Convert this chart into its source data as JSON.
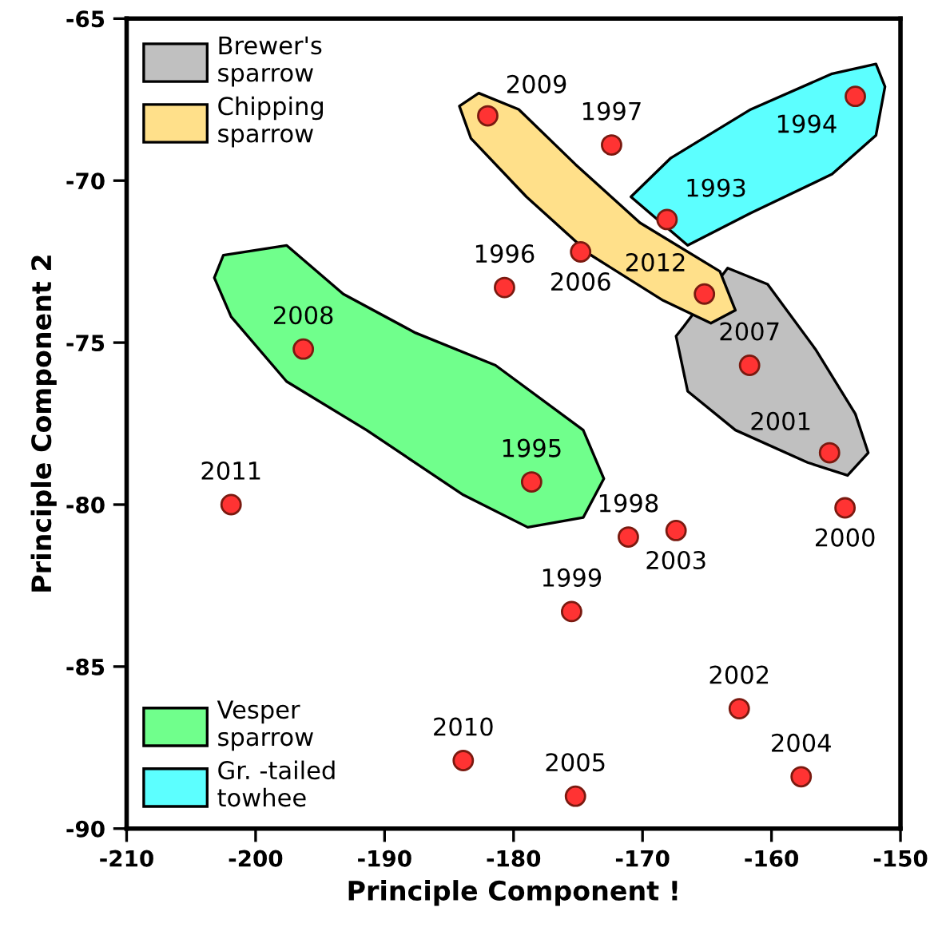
{
  "chart_data": {
    "type": "scatter",
    "xlabel": "Principle Component !",
    "ylabel": "Principle Component 2",
    "xlim": [
      -210,
      -150
    ],
    "xticks": [
      -210,
      -200,
      -190,
      -180,
      -170,
      -160,
      -150
    ],
    "ylim": [
      -90,
      -65
    ],
    "yticks": [
      -90,
      -85,
      -80,
      -75,
      -70,
      -65
    ],
    "grid": false,
    "legend": "top left",
    "series": [
      {
        "color": "#ff3333",
        "marker": "circle",
        "x": [
          -182.0,
          -172.4,
          -153.5,
          -168.1,
          -174.8,
          -180.7,
          -165.2,
          -196.3,
          -161.7,
          -155.5,
          -178.6,
          -201.9,
          -154.3,
          -171.1,
          -167.4,
          -175.5,
          -162.5,
          -183.9,
          -157.7,
          -175.2
        ],
        "values": [
          -68.0,
          -68.9,
          -67.4,
          -71.2,
          -72.2,
          -73.3,
          -73.5,
          -75.2,
          -75.7,
          -78.4,
          -79.3,
          -80.0,
          -80.1,
          -81.0,
          -80.8,
          -83.3,
          -86.3,
          -87.9,
          -88.4,
          -89.0
        ]
      },
      {
        "type": "area",
        "name": "Brewer's sparrow",
        "color": "#c0c0c0",
        "x": [
          -166.8,
          -163.4,
          -160.3,
          -156.6,
          -153.5,
          -152.5,
          -154.1,
          -157.2,
          -162.8,
          -166.5,
          -167.4
        ],
        "values": [
          -74.5,
          -72.7,
          -73.2,
          -75.2,
          -77.2,
          -78.4,
          -79.1,
          -78.7,
          -77.7,
          -76.5,
          -74.8
        ]
      },
      {
        "type": "area",
        "name": "Chipping sparrow",
        "color": "#ffe08a",
        "x": [
          -184.2,
          -182.7,
          -179.6,
          -175.2,
          -170.2,
          -164.0,
          -162.8,
          -164.7,
          -168.4,
          -174.0,
          -179.0,
          -183.3
        ],
        "values": [
          -67.7,
          -67.3,
          -67.8,
          -69.5,
          -71.3,
          -72.8,
          -74.0,
          -74.4,
          -73.7,
          -72.3,
          -70.5,
          -68.7
        ]
      },
      {
        "type": "area",
        "name": "Vesper sparrow",
        "color": "#70ff8c",
        "x": [
          -202.5,
          -197.6,
          -193.2,
          -187.6,
          -181.4,
          -174.6,
          -173.0,
          -174.6,
          -178.9,
          -183.9,
          -191.4,
          -197.6,
          -201.9,
          -203.2
        ],
        "values": [
          -72.3,
          -72.0,
          -73.5,
          -74.7,
          -75.7,
          -77.7,
          -79.2,
          -80.4,
          -80.7,
          -79.7,
          -77.7,
          -76.2,
          -74.2,
          -73.0
        ]
      },
      {
        "type": "area",
        "name": "Gr. -tailed towhee",
        "color": "#5cffff",
        "x": [
          -170.9,
          -167.8,
          -161.6,
          -155.3,
          -151.9,
          -151.2,
          -151.9,
          -155.3,
          -161.6,
          -166.5
        ],
        "values": [
          -70.5,
          -69.3,
          -67.8,
          -66.7,
          -66.4,
          -67.1,
          -68.6,
          -69.8,
          -71.0,
          -72.0
        ]
      }
    ],
    "annotations": [
      {
        "text": "2009",
        "x": -182.0,
        "y": -68.0
      },
      {
        "text": "1997",
        "x": -172.4,
        "y": -68.9
      },
      {
        "text": "1994",
        "x": -153.5,
        "y": -67.4
      },
      {
        "text": "1993",
        "x": -168.1,
        "y": -71.2
      },
      {
        "text": "2006",
        "x": -174.8,
        "y": -72.2
      },
      {
        "text": "1996",
        "x": -180.7,
        "y": -73.3
      },
      {
        "text": "2012",
        "x": -165.2,
        "y": -73.5
      },
      {
        "text": "2008",
        "x": -196.3,
        "y": -75.2
      },
      {
        "text": "2007",
        "x": -161.7,
        "y": -75.7
      },
      {
        "text": "2001",
        "x": -155.5,
        "y": -78.4
      },
      {
        "text": "1995",
        "x": -178.6,
        "y": -79.3
      },
      {
        "text": "2011",
        "x": -201.9,
        "y": -80.0
      },
      {
        "text": "2000",
        "x": -154.3,
        "y": -80.1
      },
      {
        "text": "1998",
        "x": -171.1,
        "y": -81.0
      },
      {
        "text": "2003",
        "x": -167.4,
        "y": -80.8
      },
      {
        "text": "1999",
        "x": -175.5,
        "y": -83.3
      },
      {
        "text": "2002",
        "x": -162.5,
        "y": -86.3
      },
      {
        "text": "2010",
        "x": -183.9,
        "y": -87.9
      },
      {
        "text": "2004",
        "x": -157.7,
        "y": -88.4
      },
      {
        "text": "2005",
        "x": -175.2,
        "y": -89.0
      }
    ]
  }
}
